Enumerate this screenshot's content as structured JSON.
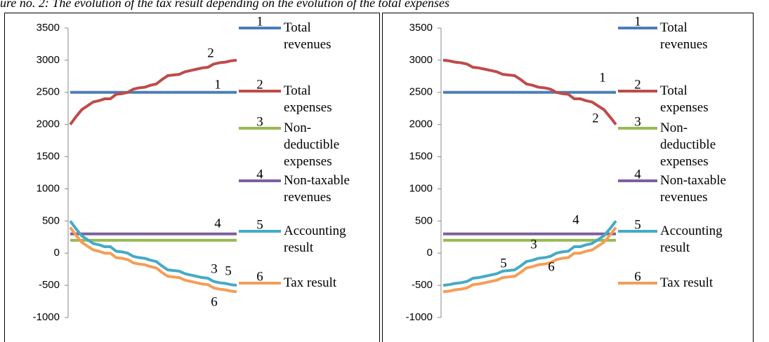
{
  "caption": "ure no. 2: The evolution of the tax result depending on the evolution of the total expenses",
  "chart_data": [
    {
      "type": "line",
      "ylim": [
        -1000,
        3500
      ],
      "yticks": [
        -1000,
        -500,
        0,
        500,
        1000,
        1500,
        2000,
        2500,
        3000,
        3500
      ],
      "series": [
        {
          "name": "Total revenues",
          "number": "1",
          "color": "#4a7ebb",
          "values": [
            2500,
            2500,
            2500,
            2500,
            2500,
            2500,
            2500,
            2500,
            2500,
            2500,
            2500,
            2500,
            2500,
            2500,
            2500,
            2500,
            2500,
            2500,
            2500,
            2500,
            2500,
            2500,
            2500,
            2500,
            2500,
            2500,
            2500,
            2500,
            2500,
            2500
          ]
        },
        {
          "name": "Total expenses",
          "number": "2",
          "color": "#be4b48",
          "values": [
            2000,
            2120,
            2230,
            2290,
            2350,
            2370,
            2400,
            2400,
            2470,
            2480,
            2500,
            2550,
            2570,
            2580,
            2610,
            2630,
            2700,
            2760,
            2770,
            2780,
            2820,
            2840,
            2860,
            2880,
            2890,
            2940,
            2960,
            2970,
            2990,
            3000
          ]
        },
        {
          "name": "Non-deductible expenses",
          "number": "3",
          "color": "#98b954",
          "values": [
            200,
            200,
            200,
            200,
            200,
            200,
            200,
            200,
            200,
            200,
            200,
            200,
            200,
            200,
            200,
            200,
            200,
            200,
            200,
            200,
            200,
            200,
            200,
            200,
            200,
            200,
            200,
            200,
            200,
            200
          ]
        },
        {
          "name": "Non-taxable revenues",
          "number": "4",
          "color": "#7d60a0",
          "values": [
            300,
            300,
            300,
            300,
            300,
            300,
            300,
            300,
            300,
            300,
            300,
            300,
            300,
            300,
            300,
            300,
            300,
            300,
            300,
            300,
            300,
            300,
            300,
            300,
            300,
            300,
            300,
            300,
            300,
            300
          ]
        },
        {
          "name": "Accounting result",
          "number": "5",
          "color": "#46aac5",
          "values": [
            500,
            380,
            270,
            210,
            150,
            130,
            100,
            100,
            30,
            20,
            0,
            -50,
            -70,
            -80,
            -110,
            -130,
            -200,
            -260,
            -270,
            -280,
            -320,
            -340,
            -360,
            -380,
            -390,
            -440,
            -460,
            -470,
            -490,
            -500
          ]
        },
        {
          "name": "Tax result",
          "number": "6",
          "color": "#f59d56",
          "values": [
            400,
            280,
            170,
            110,
            50,
            30,
            0,
            0,
            -70,
            -80,
            -100,
            -150,
            -170,
            -180,
            -210,
            -230,
            -300,
            -360,
            -370,
            -380,
            -420,
            -440,
            -460,
            -480,
            -490,
            -540,
            -560,
            -570,
            -590,
            -600
          ]
        }
      ]
    },
    {
      "type": "line",
      "ylim": [
        -1000,
        3500
      ],
      "yticks": [
        -1000,
        -500,
        0,
        500,
        1000,
        1500,
        2000,
        2500,
        3000,
        3500
      ],
      "series": [
        {
          "name": "Total revenues",
          "number": "1",
          "color": "#4a7ebb",
          "values": [
            2500,
            2500,
            2500,
            2500,
            2500,
            2500,
            2500,
            2500,
            2500,
            2500,
            2500,
            2500,
            2500,
            2500,
            2500,
            2500,
            2500,
            2500,
            2500,
            2500,
            2500,
            2500,
            2500,
            2500,
            2500,
            2500,
            2500,
            2500,
            2500,
            2500
          ]
        },
        {
          "name": "Total expenses",
          "number": "2",
          "color": "#be4b48",
          "values": [
            3000,
            2990,
            2970,
            2960,
            2940,
            2890,
            2880,
            2860,
            2840,
            2820,
            2780,
            2770,
            2760,
            2700,
            2630,
            2610,
            2580,
            2570,
            2550,
            2500,
            2480,
            2470,
            2400,
            2400,
            2370,
            2350,
            2290,
            2230,
            2120,
            2000
          ]
        },
        {
          "name": "Non-deductible expenses",
          "number": "3",
          "color": "#98b954",
          "values": [
            200,
            200,
            200,
            200,
            200,
            200,
            200,
            200,
            200,
            200,
            200,
            200,
            200,
            200,
            200,
            200,
            200,
            200,
            200,
            200,
            200,
            200,
            200,
            200,
            200,
            200,
            200,
            200,
            200,
            200
          ]
        },
        {
          "name": "Non-taxable revenues",
          "number": "4",
          "color": "#7d60a0",
          "values": [
            300,
            300,
            300,
            300,
            300,
            300,
            300,
            300,
            300,
            300,
            300,
            300,
            300,
            300,
            300,
            300,
            300,
            300,
            300,
            300,
            300,
            300,
            300,
            300,
            300,
            300,
            300,
            300,
            300,
            300
          ]
        },
        {
          "name": "Accounting result",
          "number": "5",
          "color": "#46aac5",
          "values": [
            -500,
            -490,
            -470,
            -460,
            -440,
            -390,
            -380,
            -360,
            -340,
            -320,
            -280,
            -270,
            -260,
            -200,
            -130,
            -110,
            -80,
            -70,
            -50,
            0,
            20,
            30,
            100,
            100,
            130,
            150,
            210,
            270,
            380,
            500
          ]
        },
        {
          "name": "Tax result",
          "number": "6",
          "color": "#f59d56",
          "values": [
            -600,
            -590,
            -570,
            -560,
            -540,
            -490,
            -480,
            -460,
            -440,
            -420,
            -380,
            -370,
            -360,
            -300,
            -230,
            -210,
            -180,
            -170,
            -150,
            -100,
            -80,
            -70,
            0,
            0,
            30,
            50,
            110,
            170,
            280,
            400
          ]
        }
      ]
    }
  ]
}
